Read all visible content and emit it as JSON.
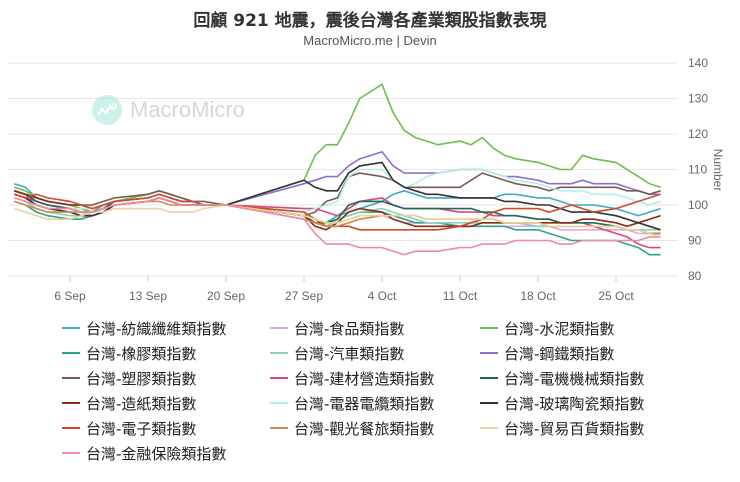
{
  "header": {
    "title": "回顧 921 地震，震後台灣各產業類股指數表現",
    "subtitle": "MacroMicro.me | Devin"
  },
  "watermark": {
    "text": "MacroMicro",
    "icon": "chart-line-icon"
  },
  "chart_data": {
    "type": "line",
    "title": "回顧 921 地震，震後台灣各產業類股指數表現",
    "subtitle": "MacroMicro.me | Devin",
    "xlabel": "",
    "ylabel": "Number",
    "ylim": [
      80,
      140
    ],
    "yticks": [
      80,
      90,
      100,
      110,
      120,
      130,
      140
    ],
    "xticks": [
      "6 Sep",
      "13 Sep",
      "20 Sep",
      "27 Sep",
      "4 Oct",
      "11 Oct",
      "18 Oct",
      "25 Oct"
    ],
    "grid": true,
    "legend_position": "bottom",
    "x": [
      1,
      2,
      3,
      4,
      6,
      7,
      8,
      9,
      10,
      13,
      14,
      15,
      16,
      17,
      18,
      20,
      27,
      28,
      29,
      30,
      31,
      32,
      34,
      35,
      36,
      37,
      38,
      39,
      41,
      42,
      43,
      44,
      45,
      46,
      48,
      49,
      50,
      51,
      52,
      53,
      55,
      56,
      57,
      58,
      59
    ],
    "x_day_note": "days since 31 Aug (1 = 1 Sep, 32 = 2 Oct)",
    "series": [
      {
        "name": "台灣-紡織纖維類指數",
        "color": "#3fa9c4",
        "values": [
          106,
          105,
          102,
          101,
          100,
          99,
          98,
          100,
          101,
          102,
          103,
          102,
          101,
          101,
          100,
          100,
          98,
          96,
          95,
          97,
          98,
          99,
          101,
          103,
          104,
          103,
          102,
          102,
          102,
          102,
          102,
          102,
          103,
          103,
          102,
          102,
          101,
          100,
          100,
          100,
          99,
          98,
          97,
          98,
          99
        ]
      },
      {
        "name": "台灣-食品類指數",
        "color": "#e6a3e6",
        "values": [
          103,
          102,
          101,
          100,
          99,
          98,
          97,
          98,
          100,
          101,
          102,
          101,
          100,
          100,
          100,
          100,
          97,
          95,
          94,
          95,
          96,
          97,
          97,
          96,
          95,
          95,
          95,
          95,
          94,
          94,
          94,
          94,
          94,
          94,
          94,
          94,
          93,
          93,
          93,
          93,
          93,
          93,
          92,
          92,
          92
        ]
      },
      {
        "name": "台灣-水泥類指數",
        "color": "#6abf4b",
        "values": [
          105,
          104,
          102,
          101,
          100,
          99,
          98,
          99,
          101,
          103,
          104,
          103,
          102,
          101,
          100,
          100,
          107,
          114,
          117,
          117,
          123,
          130,
          134,
          126,
          121,
          119,
          118,
          117,
          118,
          117,
          119,
          116,
          114,
          113,
          112,
          111,
          110,
          110,
          114,
          113,
          112,
          110,
          108,
          106,
          105
        ]
      },
      {
        "name": "台灣-橡膠類指數",
        "color": "#2ca58d",
        "values": [
          101,
          100,
          98,
          97,
          96,
          96,
          97,
          98,
          100,
          101,
          102,
          101,
          100,
          100,
          100,
          100,
          97,
          95,
          94,
          96,
          97,
          98,
          98,
          97,
          96,
          95,
          95,
          95,
          94,
          94,
          94,
          94,
          94,
          93,
          93,
          92,
          91,
          90,
          90,
          90,
          90,
          89,
          88,
          86,
          86
        ]
      },
      {
        "name": "台灣-汽車類指數",
        "color": "#8fd1c0",
        "values": [
          102,
          101,
          99,
          98,
          97,
          97,
          98,
          99,
          100,
          101,
          102,
          101,
          100,
          100,
          100,
          100,
          97,
          95,
          94,
          96,
          97,
          98,
          99,
          98,
          97,
          96,
          95,
          95,
          95,
          95,
          95,
          95,
          95,
          95,
          94,
          94,
          94,
          94,
          94,
          94,
          94,
          93,
          93,
          93,
          93
        ]
      },
      {
        "name": "台灣-鋼鐵類指數",
        "color": "#8e6fd1",
        "values": [
          104,
          103,
          101,
          100,
          99,
          98,
          98,
          99,
          101,
          102,
          103,
          102,
          101,
          101,
          100,
          100,
          106,
          107,
          108,
          108,
          111,
          113,
          115,
          111,
          109,
          109,
          109,
          109,
          110,
          110,
          110,
          109,
          108,
          108,
          107,
          106,
          106,
          106,
          107,
          106,
          106,
          105,
          104,
          103,
          103
        ]
      },
      {
        "name": "台灣-塑膠類指數",
        "color": "#7a5a52",
        "values": [
          104,
          103,
          102,
          101,
          100,
          100,
          100,
          101,
          102,
          103,
          104,
          103,
          102,
          101,
          101,
          100,
          97,
          98,
          101,
          102,
          108,
          109,
          108,
          107,
          105,
          105,
          105,
          105,
          105,
          107,
          109,
          108,
          107,
          106,
          105,
          104,
          105,
          105,
          105,
          105,
          105,
          104,
          104,
          103,
          104
        ]
      },
      {
        "name": "台灣-建材營造類指數",
        "color": "#e0447a",
        "values": [
          103,
          102,
          101,
          100,
          99,
          98,
          98,
          99,
          100,
          101,
          102,
          101,
          100,
          100,
          100,
          100,
          99,
          99,
          98,
          97,
          99,
          101,
          102,
          100,
          99,
          99,
          99,
          99,
          98,
          98,
          98,
          97,
          97,
          97,
          96,
          96,
          95,
          95,
          95,
          94,
          92,
          91,
          89,
          88,
          88
        ]
      },
      {
        "name": "台灣-電機機械類指數",
        "color": "#1d6b57",
        "values": [
          104,
          103,
          101,
          100,
          99,
          98,
          98,
          99,
          101,
          102,
          103,
          102,
          101,
          101,
          100,
          100,
          97,
          95,
          95,
          96,
          100,
          101,
          101,
          100,
          99,
          99,
          99,
          99,
          99,
          99,
          98,
          98,
          97,
          97,
          96,
          96,
          95,
          95,
          95,
          95,
          94,
          93,
          93,
          92,
          92
        ]
      },
      {
        "name": "台灣-造紙類指數",
        "color": "#8b2a15",
        "values": [
          104,
          103,
          102,
          101,
          100,
          100,
          99,
          100,
          101,
          102,
          103,
          102,
          101,
          101,
          100,
          100,
          97,
          94,
          93,
          95,
          98,
          99,
          98,
          96,
          95,
          94,
          94,
          94,
          94,
          94,
          95,
          95,
          95,
          95,
          95,
          95,
          95,
          95,
          96,
          96,
          95,
          94,
          95,
          96,
          97
        ]
      },
      {
        "name": "台灣-電器電纜類指數",
        "color": "#b2efe4",
        "values": [
          102,
          101,
          100,
          99,
          99,
          99,
          99,
          100,
          101,
          102,
          103,
          102,
          101,
          101,
          100,
          100,
          98,
          99,
          100,
          101,
          108,
          110,
          110,
          107,
          105,
          106,
          108,
          109,
          110,
          110,
          110,
          109,
          108,
          107,
          106,
          105,
          104,
          104,
          104,
          103,
          103,
          102,
          101,
          100,
          101
        ]
      },
      {
        "name": "台灣-玻璃陶瓷類指數",
        "color": "#333333",
        "values": [
          103,
          102,
          100,
          99,
          98,
          97,
          97,
          98,
          100,
          101,
          102,
          101,
          100,
          100,
          100,
          100,
          107,
          105,
          104,
          104,
          109,
          111,
          112,
          107,
          105,
          104,
          103,
          103,
          102,
          102,
          102,
          102,
          101,
          101,
          100,
          100,
          99,
          98,
          98,
          98,
          97,
          96,
          95,
          94,
          93
        ]
      },
      {
        "name": "台灣-電子類指數",
        "color": "#d1492b",
        "values": [
          103,
          102,
          103,
          102,
          101,
          100,
          99,
          100,
          101,
          102,
          103,
          102,
          101,
          101,
          100,
          100,
          98,
          96,
          94,
          94,
          94,
          93,
          93,
          93,
          93,
          93,
          93,
          93,
          94,
          95,
          96,
          98,
          99,
          99,
          99,
          98,
          99,
          100,
          99,
          98,
          99,
          100,
          101,
          102,
          103
        ]
      },
      {
        "name": "台灣-觀光餐旅類指數",
        "color": "#d08a4a",
        "values": [
          101,
          100,
          99,
          98,
          98,
          98,
          98,
          99,
          100,
          101,
          101,
          100,
          100,
          100,
          100,
          100,
          96,
          95,
          94,
          94,
          95,
          96,
          97,
          97,
          97,
          97,
          96,
          96,
          96,
          96,
          96,
          96,
          95,
          95,
          95,
          94,
          94,
          94,
          94,
          94,
          94,
          93,
          93,
          92,
          92
        ]
      },
      {
        "name": "台灣-貿易百貨類指數",
        "color": "#e8d49a",
        "values": [
          99,
          98,
          97,
          96,
          96,
          97,
          98,
          98,
          99,
          99,
          99,
          98,
          98,
          98,
          99,
          100,
          97,
          96,
          95,
          95,
          96,
          97,
          97,
          97,
          97,
          97,
          96,
          96,
          96,
          96,
          96,
          96,
          95,
          95,
          95,
          94,
          94,
          94,
          94,
          94,
          94,
          93,
          93,
          92,
          91
        ]
      },
      {
        "name": "台灣-金融保險類指數",
        "color": "#f08aa6",
        "values": [
          102,
          101,
          100,
          99,
          99,
          98,
          98,
          99,
          100,
          101,
          102,
          101,
          100,
          100,
          100,
          100,
          96,
          92,
          89,
          89,
          89,
          88,
          88,
          87,
          86,
          87,
          87,
          87,
          88,
          88,
          89,
          89,
          89,
          90,
          90,
          90,
          89,
          89,
          90,
          90,
          90,
          90,
          90,
          91,
          91
        ]
      }
    ]
  },
  "legend": {
    "items": [
      {
        "label": "台灣-紡織纖維類指數",
        "color": "#3fa9c4"
      },
      {
        "label": "台灣-食品類指數",
        "color": "#e6a3e6"
      },
      {
        "label": "台灣-水泥類指數",
        "color": "#6abf4b"
      },
      {
        "label": "台灣-橡膠類指數",
        "color": "#2ca58d"
      },
      {
        "label": "台灣-汽車類指數",
        "color": "#8fd1c0"
      },
      {
        "label": "台灣-鋼鐵類指數",
        "color": "#8e6fd1"
      },
      {
        "label": "台灣-塑膠類指數",
        "color": "#7a5a52"
      },
      {
        "label": "台灣-建材營造類指數",
        "color": "#e0447a"
      },
      {
        "label": "台灣-電機機械類指數",
        "color": "#1d6b57"
      },
      {
        "label": "台灣-造紙類指數",
        "color": "#8b2a15"
      },
      {
        "label": "台灣-電器電纜類指數",
        "color": "#b2efe4"
      },
      {
        "label": "台灣-玻璃陶瓷類指數",
        "color": "#333333"
      },
      {
        "label": "台灣-電子類指數",
        "color": "#d1492b"
      },
      {
        "label": "台灣-觀光餐旅類指數",
        "color": "#d08a4a"
      },
      {
        "label": "台灣-貿易百貨類指數",
        "color": "#e8d49a"
      },
      {
        "label": "台灣-金融保險類指數",
        "color": "#f08aa6"
      }
    ]
  }
}
